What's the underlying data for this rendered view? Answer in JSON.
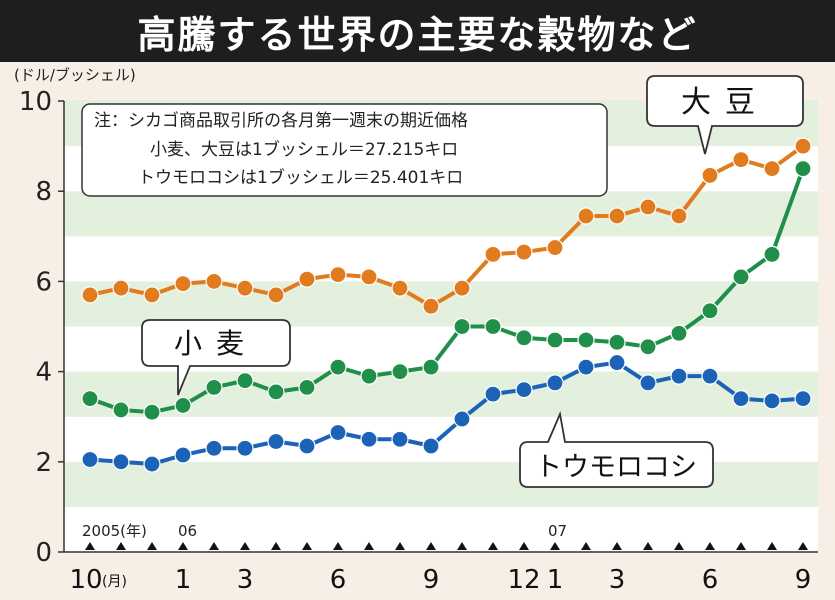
{
  "title": "高騰する世界の主要な穀物など",
  "chart_data": {
    "type": "line",
    "unit_label": "(ドル/ブッシェル)",
    "note_lines": [
      "注：シカゴ商品取引所の各月第一週末の期近価格",
      "小麦、大豆は1ブッシェル＝27.215キロ",
      "トウモロコシは1ブッシェル＝25.401キロ"
    ],
    "ylim": [
      0,
      10
    ],
    "y_ticks": [
      "0",
      "2",
      "4",
      "6",
      "8",
      "10"
    ],
    "year_labels": [
      "2005(年)",
      "06",
      "07"
    ],
    "month_labels": [
      {
        "index": 0,
        "text": "10",
        "suffix": "(月)"
      },
      {
        "index": 3,
        "text": "1"
      },
      {
        "index": 5,
        "text": "3"
      },
      {
        "index": 8,
        "text": "6"
      },
      {
        "index": 11,
        "text": "9"
      },
      {
        "index": 14,
        "text": "12"
      },
      {
        "index": 15,
        "text": "1"
      },
      {
        "index": 17,
        "text": "3"
      },
      {
        "index": 20,
        "text": "6"
      },
      {
        "index": 23,
        "text": "9"
      }
    ],
    "x": [
      "2005-10",
      "2005-11",
      "2005-12",
      "2006-01",
      "2006-02",
      "2006-03",
      "2006-04",
      "2006-05",
      "2006-06",
      "2006-07",
      "2006-08",
      "2006-09",
      "2006-10",
      "2006-11",
      "2006-12",
      "2007-01",
      "2007-02",
      "2007-03",
      "2007-04",
      "2007-05",
      "2007-06",
      "2007-07",
      "2007-08",
      "2007-09"
    ],
    "series": [
      {
        "name": "大豆",
        "color": "#e07b1e",
        "values": [
          5.7,
          5.85,
          5.7,
          5.95,
          6.0,
          5.85,
          5.7,
          6.05,
          6.15,
          6.1,
          5.85,
          5.45,
          5.85,
          6.6,
          6.65,
          6.75,
          7.45,
          7.45,
          7.65,
          7.45,
          8.35,
          8.7,
          8.5,
          9.0
        ]
      },
      {
        "name": "小麦",
        "color": "#1f8f4a",
        "values": [
          3.4,
          3.15,
          3.1,
          3.25,
          3.65,
          3.8,
          3.55,
          3.65,
          4.1,
          3.9,
          4.0,
          4.1,
          5.0,
          5.0,
          4.75,
          4.7,
          4.7,
          4.65,
          4.55,
          4.85,
          5.35,
          6.1,
          6.6,
          8.5
        ]
      },
      {
        "name": "トウモロコシ",
        "color": "#1c63b7",
        "values": [
          2.05,
          2.0,
          1.95,
          2.15,
          2.3,
          2.3,
          2.45,
          2.35,
          2.65,
          2.5,
          2.5,
          2.35,
          2.95,
          3.5,
          3.6,
          3.75,
          4.1,
          4.2,
          3.75,
          3.9,
          3.9,
          3.4,
          3.35,
          3.4
        ]
      }
    ],
    "grid": "horizontal bands"
  }
}
